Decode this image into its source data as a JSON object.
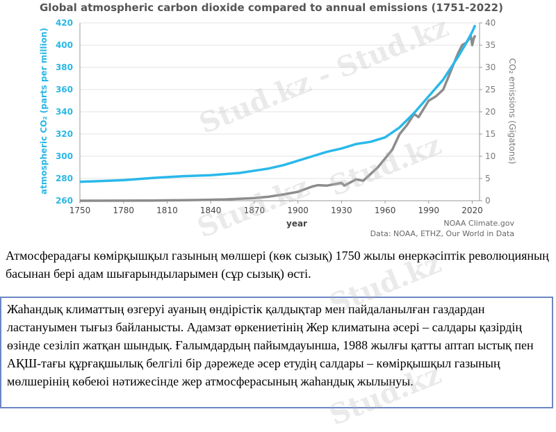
{
  "chart_data": {
    "type": "line",
    "title": "Global atmospheric carbon dioxide compared to annual emissions (1751-2022)",
    "xlabel": "year",
    "ylabel_left": "atmospheric CO₂ (parts per million)",
    "ylabel_right": "CO₂ emissions (Gigatons)",
    "xlim": [
      1750,
      2025
    ],
    "ylim_left": [
      260,
      420
    ],
    "ylim_right": [
      0,
      40
    ],
    "x_ticks": [
      1750,
      1780,
      1810,
      1840,
      1870,
      1900,
      1930,
      1960,
      1990,
      2020
    ],
    "y_left_ticks": [
      260,
      280,
      300,
      320,
      340,
      360,
      380,
      400,
      420
    ],
    "y_right_ticks": [
      0,
      5,
      10,
      15,
      20,
      25,
      30,
      35,
      40
    ],
    "source": "NOAA Climate.gov",
    "source_line2": "Data: NOAA, ETHZ, Our World in Data",
    "colors": {
      "co2_ppm": "#29b8ea",
      "emissions": "#8c8c8c"
    },
    "series": [
      {
        "axis": "left",
        "x": [
          1750,
          1780,
          1800,
          1820,
          1840,
          1860,
          1870,
          1880,
          1890,
          1900,
          1910,
          1920,
          1930,
          1940,
          1945,
          1950,
          1960,
          1970,
          1980,
          1990,
          2000,
          2010,
          2015,
          2020,
          2022
        ],
        "values": [
          277,
          278.5,
          280.5,
          282,
          283,
          285,
          287,
          289,
          292,
          296,
          300,
          304,
          307,
          311,
          312,
          313,
          317,
          326,
          339,
          354,
          369,
          389,
          400,
          412,
          418
        ]
      },
      {
        "axis": "right",
        "x": [
          1750,
          1800,
          1830,
          1850,
          1870,
          1880,
          1890,
          1900,
          1910,
          1914,
          1920,
          1930,
          1932,
          1940,
          1945,
          1950,
          1955,
          1960,
          1965,
          1970,
          1975,
          1980,
          1983,
          1990,
          1995,
          2000,
          2005,
          2010,
          2013,
          2016,
          2019,
          2020,
          2021,
          2022
        ],
        "values": [
          0,
          0.05,
          0.15,
          0.3,
          0.6,
          0.9,
          1.4,
          2.0,
          3.2,
          3.5,
          3.4,
          4.0,
          3.4,
          4.8,
          4.5,
          6.0,
          7.5,
          9.5,
          11.5,
          15,
          17,
          19.5,
          18.8,
          22.5,
          23.5,
          25,
          29,
          33,
          35,
          35.6,
          37,
          35,
          36.5,
          37.2
        ]
      }
    ]
  },
  "caption": "Атмосферадағы көмірқышқыл газының мөлшері (көк сызық) 1750 жылы өнеркәсіптік революцияның басынан бері адам шығарындыларымен (сұр сызық) өсті.",
  "info_box": "Жаһандық климаттың өзгеруі ауаның өндірістік қалдықтар мен пайдаланылған газдардан ластануымен тығыз байланысты. Адамзат өркениетінің Жер климатына әсері – салдары қазірдің өзінде сезіліп жатқан шындық. Ғалымдардың пайымдауынша, 1988 жылғы қатты аптап ыстық пен АҚШ-тағы құрғақшылық белгілі бір дәрежеде әсер етудің салдары – көмірқышқыл газының мөлшерінің көбеюі нәтижесінде жер атмосферасының жаһандық жылынуы.",
  "watermarks": [
    "Stud.kz - Stud.kz",
    "Stud.kz",
    "Stud.kz",
    "Stud.kz",
    "Stud.kz"
  ]
}
